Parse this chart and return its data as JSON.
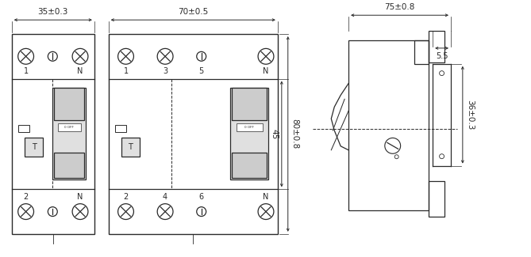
{
  "bg_color": "#ffffff",
  "line_color": "#2a2a2a",
  "gray_fill": "#cccccc",
  "light_gray": "#e0e0e0",
  "dim1_label": "35±0.3",
  "dim2_label": "70±0.5",
  "dim3_label": "75±0.8",
  "dim4_label": "5.5",
  "dim5_label": "80±0.8",
  "dim6_label": "45",
  "dim7_label": "36±0.3",
  "label_1": "1",
  "label_N1": "N",
  "label_2": "2",
  "label_N2": "N",
  "label_1b": "1",
  "label_3": "3",
  "label_5": "5",
  "label_N3": "N",
  "label_2b": "2",
  "label_4": "4",
  "label_6": "6",
  "label_N4": "N",
  "label_T1": "T",
  "label_T2": "T",
  "label_OFF": "0 OFF"
}
